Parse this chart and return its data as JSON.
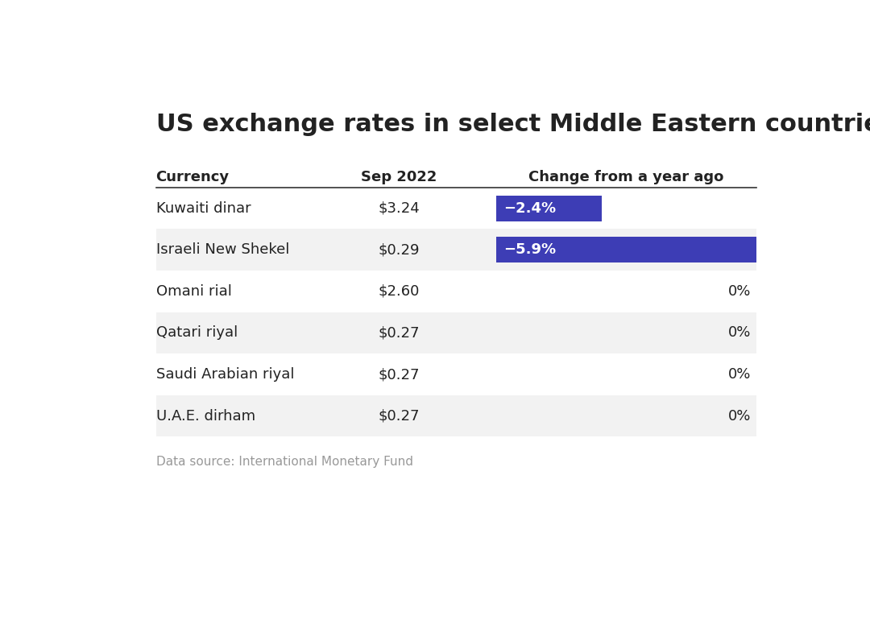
{
  "title": "US exchange rates in select Middle Eastern countries",
  "col_currency": "Currency",
  "col_sep2022": "Sep 2022",
  "col_change": "Change from a year ago",
  "rows": [
    {
      "currency": "Kuwaiti dinar",
      "sep2022": "$3.24",
      "change": -2.4,
      "change_label": "−2.4%",
      "bar": true
    },
    {
      "currency": "Israeli New Shekel",
      "sep2022": "$0.29",
      "change": -5.9,
      "change_label": "−5.9%",
      "bar": true
    },
    {
      "currency": "Omani rial",
      "sep2022": "$2.60",
      "change": 0.0,
      "change_label": "0%",
      "bar": false
    },
    {
      "currency": "Qatari riyal",
      "sep2022": "$0.27",
      "change": 0.0,
      "change_label": "0%",
      "bar": false
    },
    {
      "currency": "Saudi Arabian riyal",
      "sep2022": "$0.27",
      "change": 0.0,
      "change_label": "0%",
      "bar": false
    },
    {
      "currency": "U.A.E. dirham",
      "sep2022": "$0.27",
      "change": 0.0,
      "change_label": "0%",
      "bar": false
    }
  ],
  "bar_color": "#3d3db5",
  "source": "Data source: International Monetary Fund",
  "bg_color": "#ffffff",
  "row_alt_color": "#f2f2f2",
  "row_white_color": "#ffffff",
  "header_line_color": "#333333",
  "text_color": "#222222",
  "source_color": "#999999",
  "title_fontsize": 22,
  "header_fontsize": 13,
  "row_fontsize": 13,
  "source_fontsize": 11,
  "max_bar_change": 5.9
}
